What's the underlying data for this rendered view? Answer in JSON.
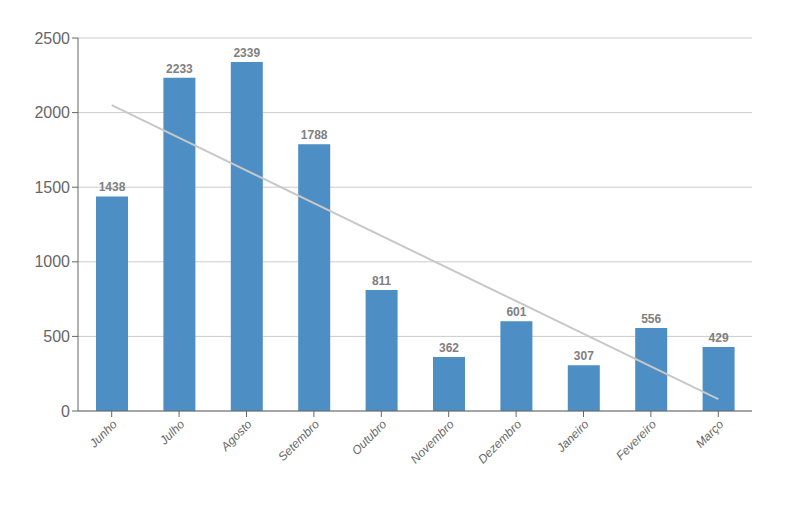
{
  "chart_data": {
    "type": "bar",
    "categories": [
      "Junho",
      "Julho",
      "Agosto",
      "Setembro",
      "Outubro",
      "Novembro",
      "Dezembro",
      "Janeiro",
      "Fevereiro",
      "Março"
    ],
    "series": [
      {
        "type": "bar",
        "color": "#4d8ec4",
        "data_labels": true,
        "values": [
          1438,
          2233,
          2339,
          1788,
          811,
          362,
          601,
          307,
          556,
          429
        ]
      },
      {
        "type": "line",
        "color": "#c8c8c8",
        "values": [
          2050,
          null,
          null,
          null,
          null,
          null,
          null,
          null,
          null,
          80
        ]
      }
    ],
    "ylim": [
      0,
      2500
    ],
    "yticks": [
      0,
      500,
      1000,
      1500,
      2000,
      2500
    ],
    "grid": true
  }
}
